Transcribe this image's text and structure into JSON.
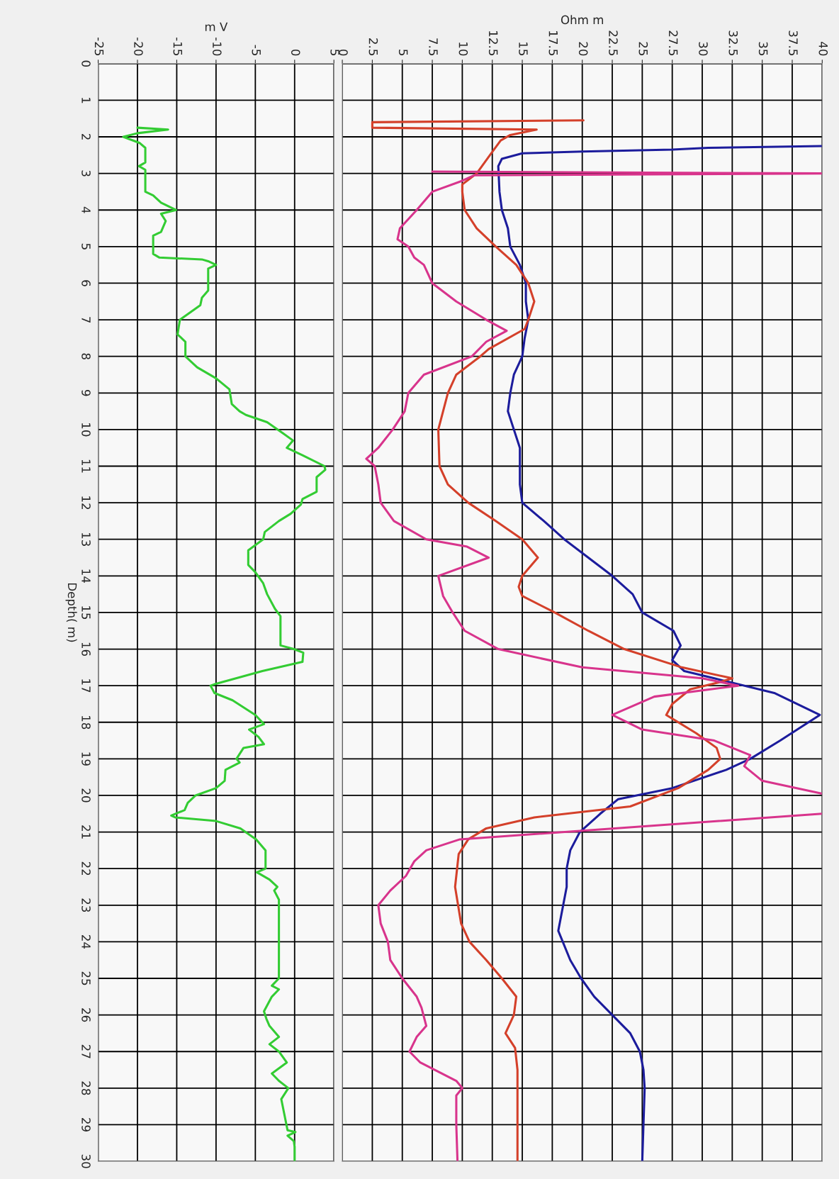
{
  "chart_data": [
    {
      "type": "line",
      "orientation": "horizontal",
      "xlabel": "m V",
      "ylabel": "Depth( m)",
      "xlim": [
        -25,
        5
      ],
      "xticks": [
        -25,
        -20,
        -15,
        -10,
        -5,
        0,
        5
      ],
      "ylim": [
        30,
        0
      ],
      "yticks": [
        0,
        1,
        2,
        3,
        4,
        5,
        6,
        7,
        8,
        9,
        10,
        11,
        12,
        13,
        14,
        15,
        16,
        17,
        18,
        19,
        20,
        21,
        22,
        23,
        24,
        25,
        26,
        27,
        28,
        29,
        30
      ],
      "grid": true,
      "series": [
        {
          "color": "#33cc33",
          "x": [
            1.75,
            1.8,
            1.9,
            2.0,
            2.17,
            2.3,
            2.7,
            2.8,
            2.9,
            3.5,
            3.6,
            3.8,
            4.0,
            4.1,
            4.3,
            4.6,
            4.7,
            5.2,
            5.3,
            5.35,
            5.4,
            5.5,
            5.6,
            6.2,
            6.4,
            6.6,
            7.0,
            7.4,
            7.6,
            8.0,
            8.3,
            8.6,
            8.9,
            9.3,
            9.5,
            9.6,
            9.8,
            10.1,
            10.3,
            10.5,
            10.7,
            11.0,
            11.1,
            11.3,
            11.7,
            11.9,
            12.05,
            12.3,
            12.5,
            12.8,
            13.0,
            13.3,
            13.7,
            13.9,
            14.2,
            14.5,
            14.9,
            15.1,
            15.9,
            16.0,
            16.1,
            16.35,
            16.6,
            16.95,
            17.0,
            17.2,
            17.4,
            17.8,
            18.05,
            18.2,
            18.4,
            18.6,
            18.7,
            19.0,
            19.1,
            19.3,
            19.6,
            19.8,
            20.0,
            20.2,
            20.4,
            20.55,
            20.6,
            20.7,
            20.9,
            21.2,
            21.5,
            22.0,
            22.1,
            22.3,
            22.5,
            22.6,
            22.85,
            25.0,
            25.2,
            25.3,
            25.5,
            25.9,
            26.1,
            26.3,
            26.6,
            26.8,
            27.0,
            27.3,
            27.6,
            27.8,
            28.0,
            28.3,
            29.15,
            29.2,
            29.3,
            29.45,
            29.6,
            30.0
          ],
          "values": [
            -20,
            -16.1,
            -20,
            -21.8,
            -19.7,
            -19,
            -19,
            -19.8,
            -19,
            -19,
            -18,
            -17,
            -15.1,
            -17,
            -16.4,
            -17,
            -18,
            -18,
            -17.2,
            -11.8,
            -11,
            -10,
            -11,
            -11,
            -11.8,
            -12,
            -14.6,
            -14.9,
            -13.9,
            -13.9,
            -12.4,
            -10,
            -8.3,
            -8,
            -7,
            -6.2,
            -3.5,
            -1.5,
            -0.2,
            -1,
            1,
            3.8,
            3.9,
            2.8,
            2.8,
            1,
            0.8,
            -0.5,
            -2,
            -3.8,
            -4,
            -5.9,
            -5.9,
            -5,
            -4,
            -3.5,
            -2.5,
            -1.8,
            -1.8,
            -0.1,
            1.1,
            1,
            -4.1,
            -10,
            -10.7,
            -10.2,
            -7.9,
            -5,
            -3.9,
            -5.8,
            -4.6,
            -3.9,
            -6.5,
            -7.4,
            -7,
            -8.8,
            -8.9,
            -10,
            -12.6,
            -13.6,
            -14,
            -15.7,
            -15.2,
            -10,
            -6.9,
            -4.9,
            -3.7,
            -3.7,
            -4.8,
            -3.2,
            -2.2,
            -2.6,
            -2,
            -2,
            -2.9,
            -2,
            -2.9,
            -3.9,
            -3.6,
            -3.2,
            -2,
            -3.2,
            -2,
            -1,
            -2.9,
            -2,
            -0.8,
            -1.7,
            -0.9,
            0.1,
            -0.9,
            -0.1,
            0,
            0
          ]
        }
      ]
    },
    {
      "type": "line",
      "orientation": "horizontal",
      "xlabel": "Ohm m",
      "xlim": [
        0,
        40
      ],
      "xticks": [
        0,
        2.5,
        5,
        7.5,
        10,
        12.5,
        15,
        17.5,
        20,
        22.5,
        25,
        27.5,
        30,
        32.5,
        35,
        37.5,
        40
      ],
      "ylim": [
        30,
        0
      ],
      "yticks": [
        0,
        1,
        2,
        3,
        4,
        5,
        6,
        7,
        8,
        9,
        10,
        11,
        12,
        13,
        14,
        15,
        16,
        17,
        18,
        19,
        20,
        21,
        22,
        23,
        24,
        25,
        26,
        27,
        28,
        29,
        30
      ],
      "grid": true,
      "tick_labels": "x",
      "series": [
        {
          "color": "#1c1c9c",
          "x": [
            2.25,
            2.3,
            2.35,
            2.4,
            2.45,
            2.6,
            2.8,
            3.5,
            4.0,
            4.5,
            5.0,
            5.5,
            6.0,
            6.5,
            7.0,
            7.5,
            8.0,
            8.5,
            9.0,
            9.5,
            10.0,
            10.5,
            11.5,
            12.0,
            12.5,
            13.0,
            13.5,
            14.0,
            14.5,
            15.0,
            15.5,
            15.9,
            16.3,
            16.6,
            16.8,
            17.2,
            17.8,
            18.5,
            19.0,
            19.3,
            19.8,
            20.1,
            20.5,
            21.0,
            21.5,
            22.0,
            22.5,
            23.7,
            24.5,
            25.0,
            25.5,
            26.0,
            26.5,
            27.0,
            27.5,
            28.0,
            30.0
          ],
          "values": [
            40,
            30.5,
            27.5,
            20,
            15,
            13.3,
            13,
            13.1,
            13.3,
            13.8,
            14,
            14.8,
            15.3,
            15.3,
            15.5,
            15.2,
            15,
            14.3,
            14,
            13.8,
            14.3,
            14.8,
            14.8,
            15,
            16.8,
            18.5,
            20.5,
            22.5,
            24.2,
            25,
            27.6,
            28.2,
            27.5,
            28.5,
            31,
            36,
            39.8,
            36.5,
            34,
            32,
            27.5,
            23,
            21.5,
            19.8,
            19,
            18.7,
            18.7,
            18,
            19,
            19.9,
            21,
            22.5,
            24,
            24.8,
            25.1,
            25.2,
            25
          ]
        },
        {
          "color": "#d4402a",
          "x": [
            1.55,
            1.6,
            1.75,
            1.8,
            1.95,
            2.1,
            2.5,
            3.0,
            3.3,
            3.5,
            4.0,
            4.5,
            5.0,
            5.5,
            6.0,
            6.5,
            7.0,
            7.25,
            7.8,
            8.0,
            8.5,
            9.0,
            10.0,
            11.0,
            11.5,
            12.0,
            12.5,
            13.0,
            13.5,
            14.0,
            14.3,
            14.55,
            15.0,
            15.5,
            16.0,
            16.5,
            16.8,
            16.9,
            17.1,
            17.5,
            17.8,
            18.3,
            18.7,
            19.0,
            19.3,
            19.8,
            20.3,
            20.6,
            20.9,
            21.2,
            21.6,
            22.5,
            23.5,
            24.0,
            24.5,
            25.0,
            25.5,
            26.0,
            26.5,
            26.9,
            27.5,
            30.0
          ],
          "values": [
            20.1,
            2.5,
            2.5,
            16.2,
            14,
            13.2,
            12.3,
            11.2,
            10,
            10,
            10.2,
            11.2,
            12.8,
            14.5,
            15.5,
            16,
            15.5,
            15.2,
            12.2,
            11.5,
            9.5,
            8.8,
            8,
            8.1,
            8.8,
            10.5,
            12.8,
            15,
            16.3,
            15,
            14.7,
            15,
            17.7,
            20.5,
            23.5,
            28.3,
            32.5,
            31.5,
            29,
            27.5,
            27,
            29.5,
            31.2,
            31.5,
            30.5,
            28,
            24,
            16,
            12,
            10.5,
            9.7,
            9.4,
            9.9,
            10.6,
            12,
            13.3,
            14.5,
            14.3,
            13.6,
            14.4,
            14.6,
            14.6
          ]
        },
        {
          "color": "#d8348c",
          "x": [
            2.95,
            3.0,
            3.05,
            3.2,
            3.5,
            4.0,
            4.5,
            4.8,
            5.0,
            5.3,
            5.5,
            6.0,
            6.5,
            7.0,
            7.3,
            7.6,
            8.0,
            8.5,
            9.0,
            9.5,
            10.0,
            10.5,
            10.8,
            11.0,
            11.5,
            12.0,
            12.5,
            13.0,
            13.2,
            13.5,
            14.0,
            14.55,
            15.0,
            15.5,
            16.0,
            16.5,
            16.8,
            17.0,
            17.3,
            17.8,
            18.2,
            18.5,
            18.9,
            19.2,
            19.6,
            19.95,
            20.2,
            20.5,
            21.2,
            21.5,
            21.8,
            22.2,
            22.6,
            23.0,
            23.5,
            24.0,
            24.5,
            25.0,
            25.5,
            25.8,
            26.3,
            26.6,
            27.0,
            27.3,
            27.8,
            28.0,
            28.2,
            29.0,
            30.0
          ],
          "values": [
            7.5,
            40,
            11,
            10,
            7.5,
            6.2,
            4.8,
            4.6,
            5.5,
            6,
            6.8,
            7.5,
            9.5,
            12,
            13.7,
            12,
            10.8,
            6.8,
            5.5,
            5.2,
            4.2,
            3,
            2,
            2.7,
            3,
            3.2,
            4.3,
            7,
            10.4,
            12.2,
            8,
            8.4,
            9.2,
            10.2,
            13,
            20,
            30,
            33,
            26,
            22.5,
            25,
            31,
            34,
            33.5,
            35,
            40,
            null,
            40,
            9.8,
            7,
            6,
            5.3,
            4,
            3,
            3.2,
            3.8,
            4,
            5,
            6.2,
            6.6,
            7,
            6.2,
            5.6,
            6.5,
            9.5,
            10,
            9.5,
            9.5,
            9.6
          ]
        }
      ]
    }
  ]
}
